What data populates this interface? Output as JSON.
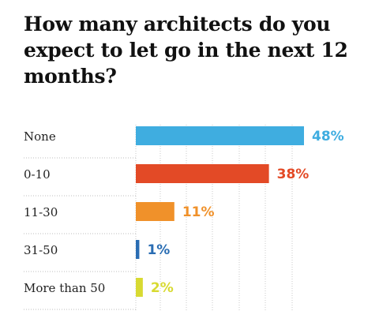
{
  "title": "How many architects do you expect to let go in the next 12 months?",
  "chart_data": {
    "type": "bar",
    "orientation": "horizontal",
    "title": "How many architects do you expect to let go in the next 12 months?",
    "categories": [
      "None",
      "0-10",
      "11-30",
      "31-50",
      "More than 50"
    ],
    "values": [
      48,
      38,
      11,
      1,
      2
    ],
    "value_labels": [
      "48%",
      "38%",
      "11%",
      "1%",
      "2%"
    ],
    "colors": [
      "#3fade0",
      "#e34a26",
      "#f0912a",
      "#2a6db3",
      "#d8da32"
    ],
    "unit": "%",
    "xlim": [
      0,
      50
    ],
    "grid": "vertical dotted",
    "legend": "none"
  }
}
